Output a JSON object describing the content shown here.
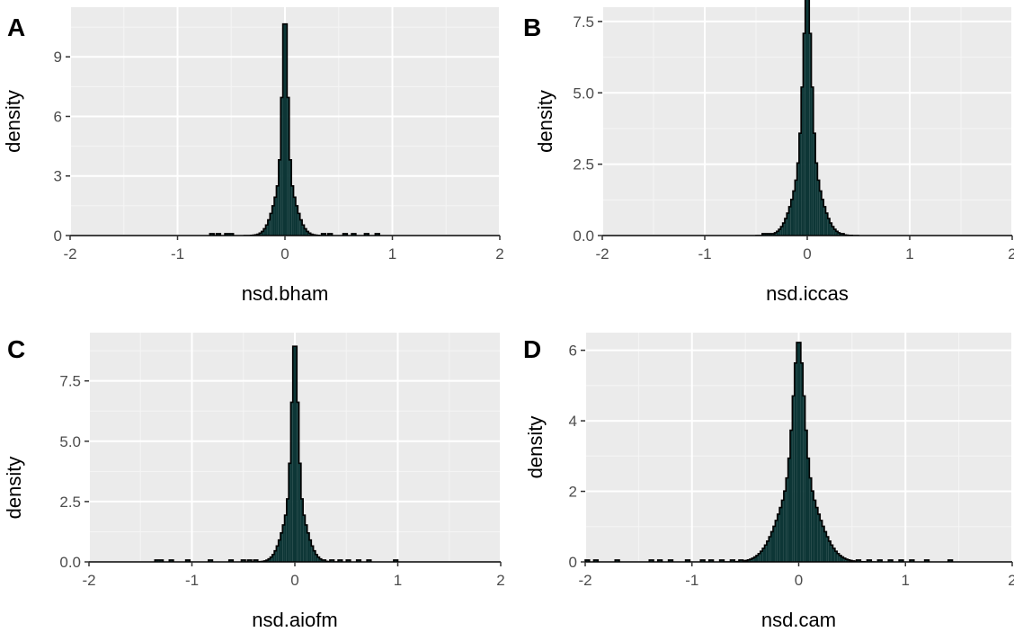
{
  "colors": {
    "panel_background": "#ebebeb",
    "grid_major": "#ffffff",
    "grid_minor": "#f5f5f5",
    "fill": "#0d3636",
    "outline": "#000000"
  },
  "chart_data": [
    {
      "type": "histogram",
      "panel_label": "A",
      "xlabel": "nsd.bham",
      "ylabel": "density",
      "xlim": [
        -2,
        2
      ],
      "ylim": [
        0,
        11.5
      ],
      "x_ticks": [
        -2,
        -1,
        0,
        1,
        2
      ],
      "y_ticks": [
        0,
        3,
        6,
        9
      ],
      "y_tick_labels": [
        "0",
        "3",
        "6",
        "9"
      ],
      "range": [
        -2.0,
        2.0
      ],
      "center": 0.0,
      "peak_density": 11.3,
      "narrow_sd": 0.025,
      "narrow_weight": 0.72,
      "broad_sd": 0.09,
      "outliers": [
        -0.68,
        -0.62,
        -0.55,
        -0.5,
        0.35,
        0.42,
        0.55,
        0.64,
        0.75,
        0.85
      ]
    },
    {
      "type": "histogram",
      "panel_label": "B",
      "xlabel": "nsd.iccas",
      "ylabel": "density",
      "xlim": [
        -2,
        2
      ],
      "ylim": [
        0,
        8.0
      ],
      "x_ticks": [
        -2,
        -1,
        0,
        1,
        2
      ],
      "y_ticks": [
        0,
        2.5,
        5,
        7.5
      ],
      "y_tick_labels": [
        "0.0",
        "2.5",
        "5.0",
        "7.5"
      ],
      "range": [
        -2.0,
        2.0
      ],
      "center": 0.0,
      "peak_density": 8.6,
      "narrow_sd": 0.04,
      "narrow_weight": 0.68,
      "broad_sd": 0.12,
      "outliers": [
        -0.42,
        -0.38,
        -0.34,
        0.3,
        0.33
      ]
    },
    {
      "type": "histogram",
      "panel_label": "C",
      "xlabel": "nsd.aiofm",
      "ylabel": "density",
      "xlim": [
        -2,
        2
      ],
      "ylim": [
        0,
        9.5
      ],
      "x_ticks": [
        -2,
        -1,
        0,
        1,
        2
      ],
      "y_ticks": [
        0,
        2.5,
        5,
        7.5
      ],
      "y_tick_labels": [
        "0.0",
        "2.5",
        "5.0",
        "7.5"
      ],
      "range": [
        -2.0,
        2.0
      ],
      "center": 0.0,
      "peak_density": 9.3,
      "narrow_sd": 0.03,
      "narrow_weight": 0.7,
      "broad_sd": 0.1,
      "outliers": [
        -1.35,
        -1.3,
        -1.2,
        -1.05,
        -0.82,
        -0.62,
        -0.5,
        -0.45,
        -0.38,
        0.28,
        0.35,
        0.44,
        0.52,
        0.62,
        0.72,
        0.98
      ]
    },
    {
      "type": "histogram",
      "panel_label": "D",
      "xlabel": "nsd.cam",
      "ylabel": "density",
      "xlim": [
        -2,
        2
      ],
      "ylim": [
        0,
        6.5
      ],
      "x_ticks": [
        -2,
        -1,
        0,
        1,
        2
      ],
      "y_ticks": [
        0,
        2,
        4,
        6
      ],
      "y_tick_labels": [
        "0",
        "2",
        "4",
        "6"
      ],
      "range": [
        -2.0,
        2.0
      ],
      "center": 0.0,
      "peak_density": 6.3,
      "narrow_sd": 0.05,
      "narrow_weight": 0.6,
      "broad_sd": 0.17,
      "outliers": [
        -1.98,
        -1.9,
        -1.7,
        -1.38,
        -1.3,
        -1.2,
        -1.05,
        -0.9,
        -0.82,
        -0.72,
        -0.62,
        -0.55,
        0.55,
        0.65,
        0.75,
        0.85,
        0.95,
        1.05,
        1.2,
        1.42
      ]
    }
  ]
}
